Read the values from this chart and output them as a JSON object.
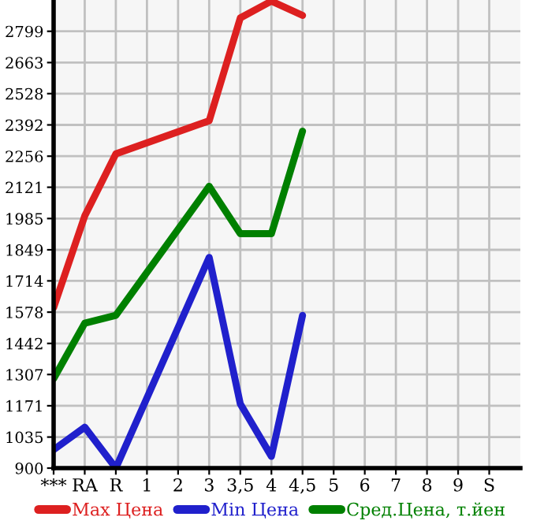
{
  "chart_data": {
    "type": "line",
    "categories": [
      "***",
      "RA",
      "R",
      "1",
      "2",
      "3",
      "3,5",
      "4",
      "4,5",
      "5",
      "6",
      "7",
      "8",
      "9",
      "S"
    ],
    "series": [
      {
        "name": "Max Цена",
        "color": "#dd2020",
        "values": [
          1598,
          1996,
          2266,
          null,
          null,
          2410,
          2857,
          2930,
          2868,
          null,
          null,
          null,
          null,
          null,
          null
        ]
      },
      {
        "name": "Min Цена",
        "color": "#2020cc",
        "values": [
          980,
          1078,
          900,
          null,
          null,
          1816,
          1179,
          951,
          1564,
          null,
          null,
          null,
          null,
          null,
          null
        ]
      },
      {
        "name": "Сред.Цена, т.йен",
        "color": "#008000",
        "values": [
          1289,
          1530,
          1564,
          null,
          null,
          2125,
          1919,
          1919,
          2365,
          null,
          null,
          null,
          null,
          null,
          null
        ]
      }
    ],
    "ylim": [
      900,
      2935
    ],
    "yticks": [
      900,
      1035,
      1171,
      1307,
      1442,
      1578,
      1714,
      1849,
      1985,
      2121,
      2256,
      2392,
      2528,
      2663,
      2799
    ],
    "grid": true,
    "legend": "bottom",
    "marker": "none",
    "line_style": "solid"
  }
}
